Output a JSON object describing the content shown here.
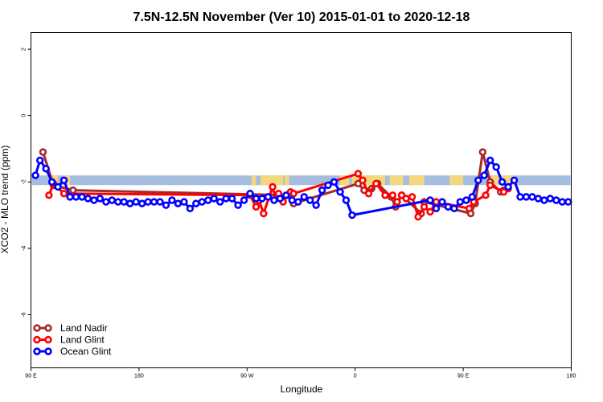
{
  "chart_data": {
    "type": "line",
    "title": "7.5N-12.5N November (Ver 10)   2015-01-01 to 2020-12-18",
    "xlabel": "Longitude",
    "ylabel": "XCO2 - MLO trend (ppm)",
    "xlim": [
      90,
      450
    ],
    "ylim": [
      -7.6,
      2.5
    ],
    "x_ticks": [
      {
        "value": 90,
        "label": "90 E"
      },
      {
        "value": 162,
        "label": "180"
      },
      {
        "value": 234,
        "label": "90 W"
      },
      {
        "value": 306,
        "label": "0"
      },
      {
        "value": 378,
        "label": "90 E"
      },
      {
        "value": 450,
        "label": "180"
      }
    ],
    "y_ticks": [
      {
        "value": 2,
        "label": "2"
      },
      {
        "value": 0,
        "label": "0"
      },
      {
        "value": -2,
        "label": "-2"
      },
      {
        "value": -4,
        "label": "-4"
      },
      {
        "value": -6,
        "label": "-6"
      }
    ],
    "legend_position": "bottom-left",
    "background_band": {
      "y": -1.95,
      "sea_color": "#a5bedf",
      "land_color": "#f5d77e"
    },
    "series": [
      {
        "name": "Land Nadir",
        "color": "#a52a2a",
        "x": [
          98,
          105,
          118,
          261,
          265,
          308,
          312,
          317,
          321,
          330,
          333,
          337,
          350,
          352,
          383,
          386,
          391,
          396,
          403,
          405
        ],
        "y": [
          -1.1,
          -2.1,
          -2.25,
          -2.4,
          -2.65,
          -2.05,
          -2.25,
          -2.2,
          -2.05,
          -2.45,
          -2.75,
          -2.4,
          -2.95,
          -2.6,
          -2.95,
          -2.65,
          -1.1,
          -2.0,
          -2.3,
          -2.25
        ]
      },
      {
        "name": "Land Glint",
        "color": "#ff0000",
        "x": [
          102,
          105,
          112,
          236,
          240,
          242,
          245,
          251,
          253,
          255,
          258,
          263,
          265,
          308,
          311,
          315,
          320,
          326,
          331,
          334,
          337,
          340,
          344,
          348,
          352,
          356,
          360,
          382,
          385,
          393,
          396,
          405,
          408
        ],
        "y": [
          -2.4,
          -2.05,
          -2.35,
          -2.4,
          -2.75,
          -2.55,
          -2.95,
          -2.15,
          -2.5,
          -2.35,
          -2.6,
          -2.3,
          -2.35,
          -1.75,
          -1.95,
          -2.35,
          -2.05,
          -2.4,
          -2.4,
          -2.6,
          -2.4,
          -2.5,
          -2.45,
          -3.05,
          -2.75,
          -2.9,
          -2.6,
          -2.8,
          -2.6,
          -2.4,
          -2.1,
          -2.3,
          -2.2
        ]
      },
      {
        "name": "Ocean Glint",
        "color": "#0000ff",
        "x": [
          93,
          96,
          100,
          104,
          108,
          112,
          116,
          120,
          124,
          128,
          132,
          136,
          140,
          144,
          148,
          152,
          156,
          160,
          164,
          168,
          172,
          176,
          180,
          184,
          188,
          192,
          196,
          200,
          204,
          208,
          212,
          216,
          220,
          224,
          228,
          232,
          236,
          240,
          244,
          248,
          252,
          256,
          260,
          264,
          268,
          272,
          276,
          280,
          284,
          288,
          292,
          296,
          300,
          304,
          356,
          360,
          364,
          368,
          372,
          376,
          380,
          384,
          388,
          392,
          396,
          400,
          404,
          408,
          412,
          416,
          420,
          424,
          428,
          432,
          436,
          440,
          444,
          448
        ],
        "y": [
          -1.8,
          -1.35,
          -1.6,
          -2.0,
          -2.15,
          -1.95,
          -2.45,
          -2.45,
          -2.45,
          -2.5,
          -2.55,
          -2.5,
          -2.6,
          -2.55,
          -2.6,
          -2.6,
          -2.65,
          -2.6,
          -2.65,
          -2.6,
          -2.6,
          -2.6,
          -2.7,
          -2.55,
          -2.65,
          -2.6,
          -2.8,
          -2.65,
          -2.6,
          -2.55,
          -2.5,
          -2.6,
          -2.5,
          -2.5,
          -2.7,
          -2.55,
          -2.35,
          -2.5,
          -2.5,
          -2.45,
          -2.55,
          -2.5,
          -2.4,
          -2.55,
          -2.6,
          -2.45,
          -2.55,
          -2.7,
          -2.25,
          -2.1,
          -2.0,
          -2.3,
          -2.55,
          -3.0,
          -2.55,
          -2.8,
          -2.6,
          -2.75,
          -2.8,
          -2.6,
          -2.55,
          -2.45,
          -1.95,
          -1.8,
          -1.35,
          -1.55,
          -2.0,
          -2.15,
          -1.95,
          -2.45,
          -2.45,
          -2.45,
          -2.5,
          -2.55,
          -2.5,
          -2.55,
          -2.6,
          -2.6
        ]
      }
    ]
  }
}
